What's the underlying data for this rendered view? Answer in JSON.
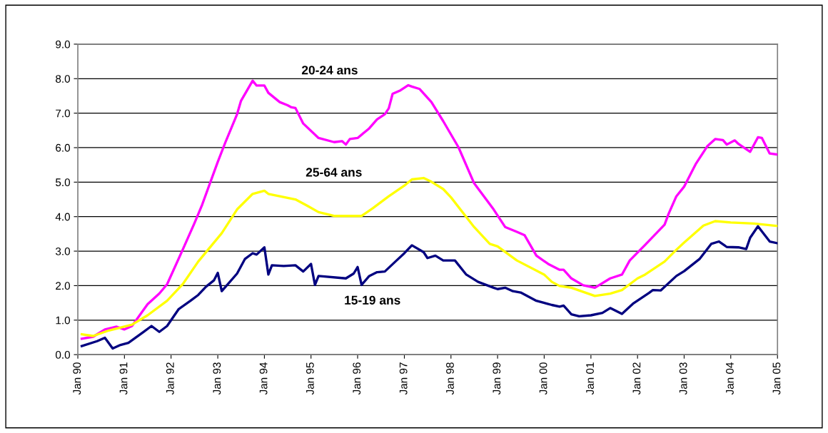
{
  "chart_data": {
    "type": "line",
    "grid": "y",
    "legend": false,
    "marker": "none",
    "line_style": "solid",
    "xlim": [
      "1990-01",
      "2005-01"
    ],
    "xticks": [
      {
        "value": "1990-01",
        "label": "Jan 90"
      },
      {
        "value": "1991-01",
        "label": "Jan 91"
      },
      {
        "value": "1992-01",
        "label": "Jan 92"
      },
      {
        "value": "1993-01",
        "label": "Jan 93"
      },
      {
        "value": "1994-01",
        "label": "Jan 94"
      },
      {
        "value": "1995-01",
        "label": "Jan 95"
      },
      {
        "value": "1996-01",
        "label": "Jan 96"
      },
      {
        "value": "1997-01",
        "label": "Jan 97"
      },
      {
        "value": "1998-01",
        "label": "Jan 98"
      },
      {
        "value": "1999-01",
        "label": "Jan 99"
      },
      {
        "value": "2000-01",
        "label": "Jan 00"
      },
      {
        "value": "2001-01",
        "label": "Jan 01"
      },
      {
        "value": "2002-01",
        "label": "Jan 02"
      },
      {
        "value": "2003-01",
        "label": "Jan 03"
      },
      {
        "value": "2004-01",
        "label": "Jan 04"
      },
      {
        "value": "2005-01",
        "label": "Jan 05"
      }
    ],
    "ylim": [
      0,
      9
    ],
    "yticks": [
      {
        "value": 0,
        "label": "0.0"
      },
      {
        "value": 1,
        "label": "1.0"
      },
      {
        "value": 2,
        "label": "2.0"
      },
      {
        "value": 3,
        "label": "3.0"
      },
      {
        "value": 4,
        "label": "4.0"
      },
      {
        "value": 5,
        "label": "5.0"
      },
      {
        "value": 6,
        "label": "6.0"
      },
      {
        "value": 7,
        "label": "7.0"
      },
      {
        "value": 8,
        "label": "8.0"
      },
      {
        "value": 9,
        "label": "9.0"
      }
    ],
    "series": [
      {
        "name": "20-24 ans",
        "color": "#ff00ff",
        "x": [
          "1990-02",
          "1990-05",
          "1990-08",
          "1990-11",
          "1991-01",
          "1991-03",
          "1991-07",
          "1991-10",
          "1991-12",
          "1992-04",
          "1992-07",
          "1992-09",
          "1993-01",
          "1993-03",
          "1993-06",
          "1993-07",
          "1993-10",
          "1993-11",
          "1994-01",
          "1994-02",
          "1994-05",
          "1994-07",
          "1994-08",
          "1994-09",
          "1994-11",
          "1995-03",
          "1995-07",
          "1995-09",
          "1995-10",
          "1995-11",
          "1996-01",
          "1996-04",
          "1996-06",
          "1996-08",
          "1996-09",
          "1996-10",
          "1996-12",
          "1997-02",
          "1997-03",
          "1997-05",
          "1997-08",
          "1997-11",
          "1998-03",
          "1998-07",
          "1998-12",
          "1999-03",
          "1999-06",
          "1999-08",
          "1999-11",
          "2000-02",
          "2000-05",
          "2000-06",
          "2000-08",
          "2000-11",
          "2001-02",
          "2001-06",
          "2001-09",
          "2001-11",
          "2002-03",
          "2002-08",
          "2002-09",
          "2002-11",
          "2003-01",
          "2003-04",
          "2003-07",
          "2003-09",
          "2003-11",
          "2003-12",
          "2004-02",
          "2004-03",
          "2004-06",
          "2004-08",
          "2004-09",
          "2004-11",
          "2005-01"
        ],
        "values": [
          0.46,
          0.52,
          0.73,
          0.81,
          0.73,
          0.83,
          1.46,
          1.77,
          2.04,
          3.04,
          3.8,
          4.35,
          5.59,
          6.15,
          6.97,
          7.35,
          7.94,
          7.8,
          7.8,
          7.59,
          7.32,
          7.23,
          7.17,
          7.15,
          6.7,
          6.28,
          6.16,
          6.19,
          6.09,
          6.25,
          6.28,
          6.56,
          6.82,
          6.97,
          7.14,
          7.56,
          7.66,
          7.81,
          7.77,
          7.7,
          7.32,
          6.77,
          6.01,
          4.97,
          4.21,
          3.7,
          3.56,
          3.46,
          2.87,
          2.63,
          2.46,
          2.46,
          2.21,
          2.01,
          1.94,
          2.21,
          2.32,
          2.73,
          3.18,
          3.77,
          4.08,
          4.59,
          4.87,
          5.52,
          6.04,
          6.25,
          6.22,
          6.09,
          6.21,
          6.11,
          5.88,
          6.3,
          6.28,
          5.83,
          5.8
        ]
      },
      {
        "name": "25-64 ans",
        "color": "#ffff00",
        "x": [
          "1990-02",
          "1990-05",
          "1990-09",
          "1991-03",
          "1991-07",
          "1991-12",
          "1992-04",
          "1992-08",
          "1993-02",
          "1993-06",
          "1993-10",
          "1994-01",
          "1994-02",
          "1994-05",
          "1994-09",
          "1994-12",
          "1995-03",
          "1995-07",
          "1996-02",
          "1996-05",
          "1996-09",
          "1997-01",
          "1997-03",
          "1997-06",
          "1997-08",
          "1997-11",
          "1998-01",
          "1998-07",
          "1998-11",
          "1999-01",
          "1999-06",
          "2000-01",
          "2000-03",
          "2000-05",
          "2000-08",
          "2001-02",
          "2001-06",
          "2001-09",
          "2002-01",
          "2002-03",
          "2002-08",
          "2002-11",
          "2003-01",
          "2003-06",
          "2003-09",
          "2004-01",
          "2004-07",
          "2005-01"
        ],
        "values": [
          0.59,
          0.54,
          0.7,
          0.87,
          1.14,
          1.56,
          2.04,
          2.7,
          3.52,
          4.21,
          4.66,
          4.75,
          4.66,
          4.59,
          4.5,
          4.32,
          4.13,
          4.02,
          4.02,
          4.25,
          4.59,
          4.9,
          5.08,
          5.12,
          5.01,
          4.8,
          4.56,
          3.7,
          3.21,
          3.14,
          2.73,
          2.32,
          2.11,
          1.99,
          1.94,
          1.7,
          1.77,
          1.87,
          2.21,
          2.32,
          2.7,
          3.04,
          3.25,
          3.74,
          3.87,
          3.83,
          3.8,
          3.73
        ]
      },
      {
        "name": "15-19 ans",
        "color": "#000080",
        "x": [
          "1990-02",
          "1990-06",
          "1990-08",
          "1990-10",
          "1990-12",
          "1991-02",
          "1991-06",
          "1991-08",
          "1991-10",
          "1991-12",
          "1992-03",
          "1992-06",
          "1992-08",
          "1992-10",
          "1992-12",
          "1993-01",
          "1993-02",
          "1993-06",
          "1993-08",
          "1993-10",
          "1993-11",
          "1994-01",
          "1994-02",
          "1994-03",
          "1994-06",
          "1994-09",
          "1994-11",
          "1995-01",
          "1995-02",
          "1995-03",
          "1995-10",
          "1995-12",
          "1996-01",
          "1996-02",
          "1996-04",
          "1996-06",
          "1996-08",
          "1996-11",
          "1997-01",
          "1997-03",
          "1997-06",
          "1997-07",
          "1997-09",
          "1997-11",
          "1998-02",
          "1998-05",
          "1998-08",
          "1998-12",
          "1999-01",
          "1999-03",
          "1999-05",
          "1999-07",
          "1999-11",
          "2000-02",
          "2000-03",
          "2000-05",
          "2000-06",
          "2000-08",
          "2000-10",
          "2001-01",
          "2001-04",
          "2001-06",
          "2001-09",
          "2001-12",
          "2002-04",
          "2002-05",
          "2002-07",
          "2002-11",
          "2003-01",
          "2003-05",
          "2003-08",
          "2003-10",
          "2003-12",
          "2004-03",
          "2004-05",
          "2004-06",
          "2004-08",
          "2004-11",
          "2005-01"
        ],
        "values": [
          0.25,
          0.39,
          0.49,
          0.18,
          0.28,
          0.34,
          0.66,
          0.83,
          0.66,
          0.83,
          1.32,
          1.56,
          1.73,
          1.97,
          2.15,
          2.37,
          1.84,
          2.35,
          2.77,
          2.94,
          2.9,
          3.11,
          2.32,
          2.59,
          2.57,
          2.59,
          2.41,
          2.63,
          2.02,
          2.28,
          2.21,
          2.35,
          2.54,
          2.02,
          2.28,
          2.39,
          2.41,
          2.73,
          2.94,
          3.17,
          2.97,
          2.8,
          2.87,
          2.73,
          2.73,
          2.32,
          2.11,
          1.94,
          1.9,
          1.94,
          1.84,
          1.8,
          1.56,
          1.47,
          1.44,
          1.39,
          1.42,
          1.17,
          1.11,
          1.14,
          1.21,
          1.35,
          1.18,
          1.49,
          1.79,
          1.87,
          1.86,
          2.28,
          2.42,
          2.77,
          3.21,
          3.28,
          3.12,
          3.11,
          3.06,
          3.39,
          3.72,
          3.28,
          3.23
        ]
      }
    ]
  }
}
